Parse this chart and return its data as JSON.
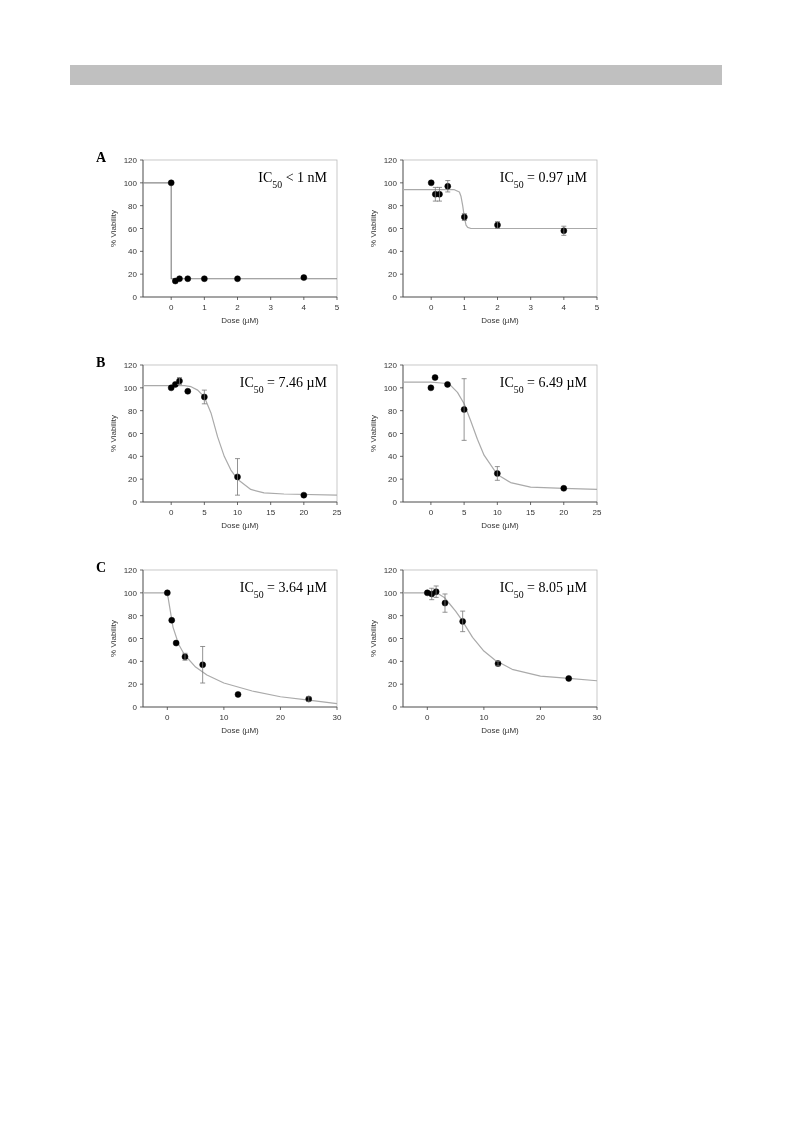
{
  "chart_data": [
    {
      "type": "scatter",
      "title": "A",
      "xlabel": "Dose (µM)",
      "ylabel": "% Viability",
      "xlim": [
        -0.85,
        5
      ],
      "xticks": [
        0,
        1,
        2,
        3,
        4,
        5
      ],
      "ylim": [
        0,
        120
      ],
      "yticks": [
        0,
        20,
        40,
        60,
        80,
        100,
        120
      ],
      "grid": false,
      "marker": "circle",
      "annotations": [
        "IC$_{50}$ < 1 nM"
      ],
      "series": [
        {
          "type": "line",
          "marker": "none",
          "color": "#888888",
          "x": [
            -0.85,
            0,
            0.001,
            5
          ],
          "values": [
            100,
            100,
            16,
            16
          ]
        },
        {
          "color": "#000000",
          "x": [
            0,
            0.125,
            0.25,
            0.5,
            1,
            2,
            4
          ],
          "values": [
            100,
            14,
            16,
            16,
            16,
            16,
            17
          ]
        }
      ]
    },
    {
      "type": "scatter",
      "xlabel": "Dose (µM)",
      "ylabel": "% Viability",
      "xlim": [
        -0.85,
        5
      ],
      "xticks": [
        0,
        1,
        2,
        3,
        4,
        5
      ],
      "ylim": [
        0,
        120
      ],
      "yticks": [
        0,
        20,
        40,
        60,
        80,
        100,
        120
      ],
      "grid": false,
      "marker": "circle",
      "annotations": [
        "IC$_{50}$ = 0.97 µM"
      ],
      "series": [
        {
          "type": "line",
          "marker": "none",
          "color": "#aaaaaa",
          "x": [
            -0.85,
            0.7,
            0.85,
            0.9,
            0.95,
            1,
            1.05,
            1.1,
            1.2,
            5
          ],
          "values": [
            94,
            94,
            92,
            88,
            80,
            70,
            63,
            61,
            60,
            60
          ]
        },
        {
          "color": "#000000",
          "x": [
            0,
            0.125,
            0.25,
            0.5,
            1,
            2,
            4
          ],
          "values": [
            100,
            90,
            90,
            97,
            70,
            63,
            58
          ],
          "errors": [
            null,
            6,
            6,
            5,
            3,
            3,
            4
          ]
        }
      ]
    },
    {
      "type": "scatter",
      "title": "B",
      "xlabel": "Dose (µM)",
      "ylabel": "% Viability",
      "xlim": [
        -4.25,
        25
      ],
      "xticks": [
        0,
        5,
        10,
        15,
        20,
        25
      ],
      "ylim": [
        0,
        120
      ],
      "yticks": [
        0,
        20,
        40,
        60,
        80,
        100,
        120
      ],
      "grid": false,
      "marker": "circle",
      "annotations": [
        "IC$_{50}$ = 7.46 µM"
      ],
      "series": [
        {
          "type": "line",
          "marker": "none",
          "color": "#aaaaaa",
          "x": [
            -4.25,
            0,
            2,
            3,
            4,
            5,
            6,
            7,
            8,
            9,
            10,
            12,
            14,
            17,
            25
          ],
          "values": [
            102,
            102,
            102,
            101,
            98,
            92,
            78,
            57,
            40,
            28,
            20,
            11,
            8,
            7,
            6
          ]
        },
        {
          "color": "#000000",
          "x": [
            0,
            0.625,
            1.25,
            2.5,
            5,
            10,
            20
          ],
          "values": [
            100,
            103,
            106,
            97,
            92,
            22,
            6
          ],
          "errors": [
            null,
            null,
            3,
            null,
            6,
            16,
            null
          ]
        }
      ]
    },
    {
      "type": "scatter",
      "xlabel": "Dose (µM)",
      "ylabel": "% Viability",
      "xlim": [
        -4.2,
        25
      ],
      "xticks": [
        0,
        5,
        10,
        15,
        20,
        25
      ],
      "ylim": [
        0,
        120
      ],
      "yticks": [
        0,
        20,
        40,
        60,
        80,
        100,
        120
      ],
      "grid": false,
      "marker": "circle",
      "annotations": [
        "IC$_{50}$ = 6.49 µM"
      ],
      "series": [
        {
          "type": "line",
          "marker": "none",
          "color": "#aaaaaa",
          "x": [
            -4.2,
            0,
            2,
            3,
            4,
            5,
            6,
            7,
            8,
            10,
            12,
            15,
            20,
            25
          ],
          "values": [
            105,
            105,
            104,
            102,
            96,
            86,
            71,
            55,
            41,
            24,
            17,
            13,
            12,
            11
          ]
        },
        {
          "color": "#000000",
          "x": [
            0,
            0.625,
            2.5,
            5,
            10,
            20
          ],
          "values": [
            100,
            109,
            103,
            81,
            25,
            12
          ],
          "errors": [
            null,
            null,
            null,
            27,
            6,
            null
          ]
        }
      ]
    },
    {
      "type": "scatter",
      "title": "C",
      "xlabel": "Dose (µM)",
      "ylabel": "% Viability",
      "xlim": [
        -4.3,
        30
      ],
      "xticks": [
        0,
        10,
        20,
        30
      ],
      "ylim": [
        0,
        120
      ],
      "yticks": [
        0,
        20,
        40,
        60,
        80,
        100,
        120
      ],
      "grid": false,
      "marker": "circle",
      "annotations": [
        "IC$_{50}$ = 3.64 µM"
      ],
      "series": [
        {
          "type": "line",
          "marker": "none",
          "color": "#aaaaaa",
          "x": [
            -4.3,
            0,
            1,
            2,
            3,
            5,
            7,
            10,
            15,
            20,
            25,
            30
          ],
          "values": [
            100,
            100,
            70,
            55,
            46,
            35,
            28,
            21,
            14,
            9,
            6,
            3
          ]
        },
        {
          "color": "#000000",
          "x": [
            0,
            0.78,
            1.56,
            3.125,
            6.25,
            12.5,
            25
          ],
          "values": [
            100,
            76,
            56,
            44,
            37,
            11,
            7
          ],
          "errors": [
            null,
            null,
            null,
            3,
            16,
            null,
            2
          ]
        }
      ]
    },
    {
      "type": "scatter",
      "xlabel": "Dose (µM)",
      "ylabel": "% Viability",
      "xlim": [
        -4.3,
        30
      ],
      "xticks": [
        0,
        10,
        20,
        30
      ],
      "ylim": [
        0,
        120
      ],
      "yticks": [
        0,
        20,
        40,
        60,
        80,
        100,
        120
      ],
      "grid": false,
      "marker": "circle",
      "annotations": [
        "IC$_{50}$ = 8.05 µM"
      ],
      "series": [
        {
          "type": "line",
          "marker": "none",
          "color": "#aaaaaa",
          "x": [
            -4.3,
            0,
            2,
            3,
            4,
            5,
            6,
            8,
            10,
            12,
            15,
            20,
            25,
            30
          ],
          "values": [
            100,
            100,
            99,
            96,
            90,
            84,
            77,
            61,
            49,
            41,
            33,
            27,
            25,
            23
          ]
        },
        {
          "color": "#000000",
          "x": [
            0,
            0.78,
            1.56,
            3.125,
            6.25,
            12.5,
            25
          ],
          "values": [
            100,
            99,
            101,
            91,
            75,
            38,
            25
          ],
          "errors": [
            null,
            5,
            5,
            8,
            9,
            2,
            null
          ]
        }
      ]
    }
  ]
}
